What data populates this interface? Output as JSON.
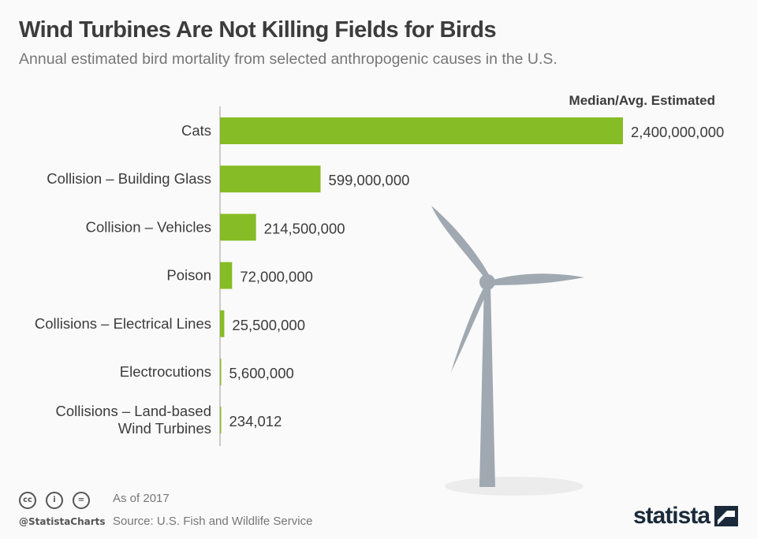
{
  "header": {
    "title": "Wind Turbines Are Not Killing Fields for Birds",
    "subtitle": "Annual estimated bird mortality from selected anthropogenic causes in the U.S."
  },
  "chart_data": {
    "type": "bar",
    "orientation": "horizontal",
    "column_header": "Median/Avg. Estimated",
    "categories": [
      "Cats",
      "Collision – Building Glass",
      "Collision – Vehicles",
      "Poison",
      "Collisions – Electrical Lines",
      "Electrocutions",
      "Collisions – Land-based Wind Turbines"
    ],
    "values": [
      2400000000,
      599000000,
      214500000,
      72000000,
      25500000,
      5600000,
      234012
    ],
    "value_labels": [
      "2,400,000,000",
      "599,000,000",
      "214,500,000",
      "72,000,000",
      "25,500,000",
      "5,600,000",
      "234,012"
    ],
    "bar_color": "#86bc25",
    "grid": false
  },
  "footer": {
    "as_of": "As of 2017",
    "source": "Source: U.S. Fish and Wildlife Service",
    "handle": "@StatistaCharts",
    "logo": "statista"
  },
  "colors": {
    "turbine": "#a0a9b1",
    "title": "#3c3c3c"
  }
}
